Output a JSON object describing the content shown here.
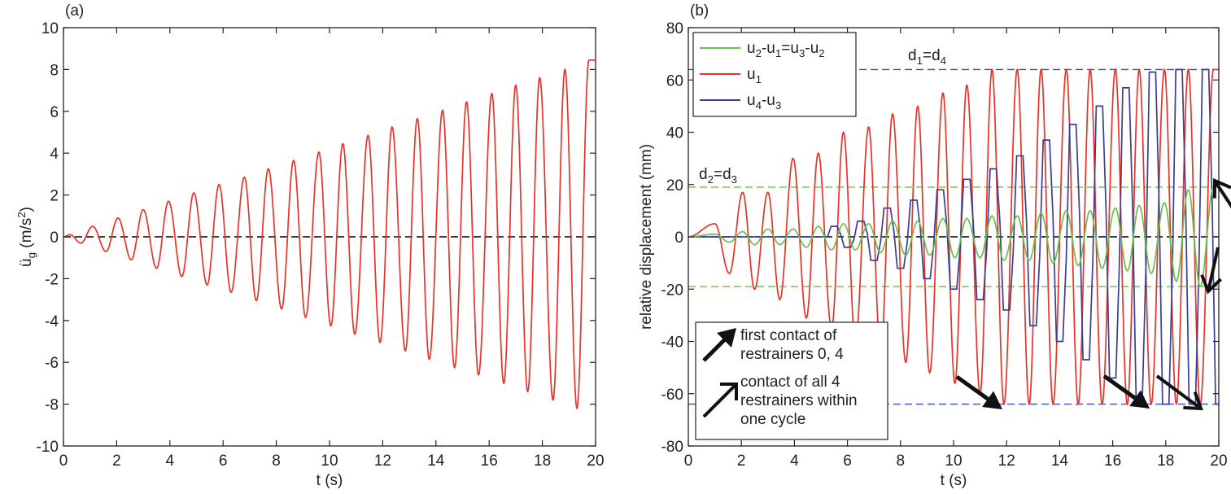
{
  "chart_data": [
    {
      "type": "line",
      "panel_label": "(a)",
      "xlabel": "t (s)",
      "ylabel": {
        "main": "ü",
        "sub": "g",
        "unit_open": " (m/s",
        "unit_sup": "2",
        "unit_close": ")"
      },
      "xlim": [
        0,
        20
      ],
      "ylim": [
        -10,
        10
      ],
      "xticks": [
        0,
        2,
        4,
        6,
        8,
        10,
        12,
        14,
        16,
        18,
        20
      ],
      "yticks": [
        -10,
        -8,
        -6,
        -4,
        -2,
        0,
        2,
        4,
        6,
        8,
        10
      ],
      "reference_lines": [
        {
          "y": 0,
          "style": "dashed",
          "color": "#000000"
        }
      ],
      "series": [
        {
          "color": "#e8332a",
          "description_values": {
            "positive_peaks_t": [
              0.25,
              1.1,
              2.05,
              3.0,
              3.95,
              4.9,
              5.85,
              6.8,
              7.7,
              8.65,
              9.6,
              10.5,
              11.45,
              12.35,
              13.3,
              14.25,
              15.15,
              16.1,
              17.0,
              17.9,
              18.85,
              19.75
            ],
            "positive_peaks_y": [
              0.1,
              0.5,
              0.9,
              1.3,
              1.7,
              2.1,
              2.5,
              2.85,
              3.25,
              3.65,
              4.05,
              4.45,
              4.85,
              5.25,
              5.65,
              6.05,
              6.45,
              6.85,
              7.25,
              7.6,
              8.0,
              8.45
            ],
            "negative_peaks_t": [
              0.65,
              1.6,
              2.55,
              3.5,
              4.45,
              5.4,
              6.3,
              7.25,
              8.2,
              9.1,
              10.05,
              10.95,
              11.9,
              12.85,
              13.75,
              14.7,
              15.6,
              16.55,
              17.45,
              18.4,
              19.3
            ],
            "negative_peaks_y": [
              -0.3,
              -0.7,
              -1.1,
              -1.5,
              -1.9,
              -2.3,
              -2.65,
              -3.05,
              -3.45,
              -3.85,
              -4.25,
              -4.65,
              -5.05,
              -5.45,
              -5.85,
              -6.25,
              -6.6,
              -7.0,
              -7.4,
              -7.8,
              -8.2
            ]
          }
        }
      ]
    },
    {
      "type": "line",
      "panel_label": "(b)",
      "xlabel": "t (s)",
      "ylabel": "relative displacement (mm)",
      "xlim": [
        0,
        20
      ],
      "ylim": [
        -80,
        80
      ],
      "xticks": [
        0,
        2,
        4,
        6,
        8,
        10,
        12,
        14,
        16,
        18,
        20
      ],
      "yticks": [
        -80,
        -60,
        -40,
        -20,
        0,
        20,
        40,
        60,
        80
      ],
      "legend": {
        "placement": "top-left",
        "entries": [
          {
            "color": "#6cbf4a",
            "parts": [
              [
                "u",
                ""
              ],
              [
                "2",
                "sub"
              ],
              [
                "-u",
                ""
              ],
              [
                "1",
                "sub"
              ],
              [
                "=u",
                ""
              ],
              [
                "3",
                "sub"
              ],
              [
                "-u",
                ""
              ],
              [
                "2",
                "sub"
              ]
            ]
          },
          {
            "color": "#e8332a",
            "parts": [
              [
                "u",
                ""
              ],
              [
                "1",
                "sub"
              ]
            ]
          },
          {
            "color": "#3a3f8f",
            "parts": [
              [
                "u",
                ""
              ],
              [
                "4",
                "sub"
              ],
              [
                "-u",
                ""
              ],
              [
                "3",
                "sub"
              ]
            ]
          }
        ]
      },
      "reference_lines": [
        {
          "y": 64,
          "color": "#3a4fa0",
          "style": "dashed"
        },
        {
          "y": -64,
          "color": "#3a4fa0",
          "style": "dashed"
        },
        {
          "y": 19,
          "color": "#6cbf4a",
          "style": "dashed"
        },
        {
          "y": -19,
          "color": "#6cbf4a",
          "style": "dashed"
        },
        {
          "y": 0,
          "color": "#000000",
          "style": "dashed"
        }
      ],
      "annotations": [
        {
          "parts": [
            [
              "d",
              ""
            ],
            [
              "1",
              "sub"
            ],
            [
              "=d",
              ""
            ],
            [
              "4",
              "sub"
            ]
          ]
        },
        {
          "parts": [
            [
              "d",
              ""
            ],
            [
              "2",
              "sub"
            ],
            [
              "=d",
              ""
            ],
            [
              "3",
              "sub"
            ]
          ]
        }
      ],
      "arrow_legend": [
        {
          "style": "filled",
          "lines": [
            "first contact of",
            "restrainers 0, 4"
          ]
        },
        {
          "style": "open",
          "lines": [
            "contact of all 4",
            "restrainers within",
            "one cycle"
          ]
        }
      ],
      "series": [
        {
          "name": "u1",
          "color": "#e8332a",
          "description_values": {
            "positive_peaks_t": [
              1.0,
              2.05,
              3.0,
              3.95,
              4.9,
              5.85,
              6.8,
              7.7,
              8.65,
              9.6,
              10.5,
              11.45,
              12.4,
              13.3,
              14.25,
              15.15,
              16.1,
              17.0,
              17.95,
              18.85,
              19.8
            ],
            "positive_peaks_y": [
              5,
              17,
              17,
              30,
              32,
              40,
              42,
              47,
              50,
              55,
              58,
              64,
              64,
              64,
              64,
              64,
              64,
              64,
              64,
              64,
              64
            ],
            "negative_peaks_t": [
              1.55,
              2.5,
              3.45,
              4.45,
              5.4,
              6.3,
              7.25,
              8.2,
              9.1,
              10.05,
              11.0,
              11.9,
              12.85,
              13.75,
              14.7,
              15.6,
              16.55,
              17.45,
              18.4,
              19.3
            ],
            "negative_peaks_y": [
              -14,
              -20,
              -24,
              -31,
              -35,
              -40,
              -44,
              -48,
              -52,
              -56,
              -60,
              -64,
              -64,
              -64,
              -64,
              -64,
              -64,
              -64,
              -64,
              -64
            ]
          }
        },
        {
          "name": "u4-u3",
          "color": "#3a3f8f",
          "description_values": {
            "t": [
              5.5,
              6.0,
              6.5,
              7.0,
              7.5,
              8.0,
              8.5,
              9.0,
              9.5,
              10.0,
              10.5,
              11.0,
              11.5,
              12.0,
              12.5,
              13.0,
              13.5,
              14.0,
              14.5,
              15.0,
              15.5,
              16.0,
              16.5,
              17.0,
              17.5,
              18.0,
              18.5,
              19.0,
              19.5,
              20.0
            ],
            "y": [
              4,
              -4,
              6,
              -9,
              11,
              -12,
              14,
              -16,
              18,
              -20,
              22,
              -24,
              26,
              -28,
              31,
              -34,
              37,
              -40,
              43,
              -47,
              50,
              -54,
              57,
              -61,
              63,
              -64,
              64,
              -64,
              64,
              -64
            ]
          }
        },
        {
          "name": "u2-u1=u3-u2",
          "color": "#6cbf4a",
          "description_values": {
            "positive_peaks_t": [
              1.0,
              2.05,
              3.0,
              3.95,
              4.9,
              5.85,
              6.8,
              7.7,
              8.65,
              9.6,
              10.5,
              11.45,
              12.4,
              13.3,
              14.25,
              15.15,
              16.1,
              17.0,
              17.95,
              18.85,
              19.8
            ],
            "positive_peaks_y": [
              1,
              2,
              3,
              3,
              4,
              5,
              5,
              6,
              6,
              7,
              7,
              8,
              8,
              9,
              10,
              10,
              11,
              12,
              13,
              18,
              19
            ],
            "negative_peaks_t": [
              1.55,
              2.5,
              3.45,
              4.45,
              5.4,
              6.3,
              7.25,
              8.2,
              9.1,
              10.05,
              11.0,
              11.9,
              12.85,
              13.75,
              14.7,
              15.6,
              16.55,
              17.45,
              18.4,
              19.3
            ],
            "negative_peaks_y": [
              -2,
              -3,
              -3,
              -4,
              -5,
              -5,
              -6,
              -7,
              -7,
              -8,
              -8,
              -9,
              -9,
              -10,
              -11,
              -12,
              -13,
              -14,
              -17,
              -19
            ]
          }
        }
      ]
    }
  ]
}
